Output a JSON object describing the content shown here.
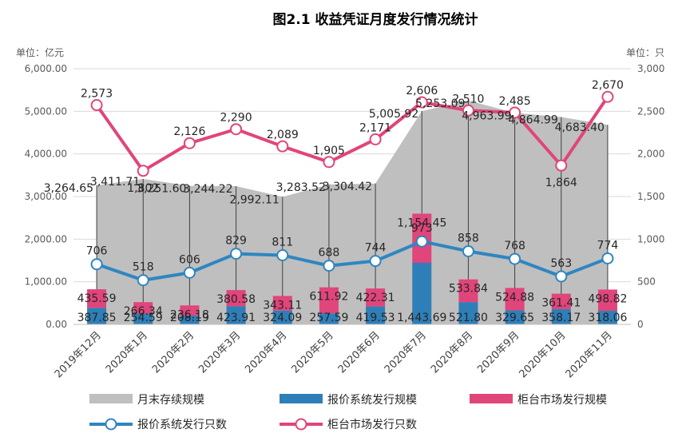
{
  "chart_data": {
    "type": "combo",
    "title": "图2.1 收益凭证月度发行情况统计",
    "left_unit": "单位：亿元",
    "right_unit": "单位：只",
    "left_ticks": [
      "0.00",
      "1,000.00",
      "2,000.00",
      "3,000.00",
      "4,000.00",
      "5,000.00",
      "6,000.00"
    ],
    "right_ticks": [
      "0",
      "500",
      "1,000",
      "1,500",
      "2,000",
      "2,500",
      "3,000"
    ],
    "left_ylim": [
      0,
      6000
    ],
    "right_ylim": [
      0,
      3000
    ],
    "categories": [
      "2019年12月",
      "2020年1月",
      "2020年2月",
      "2020年3月",
      "2020年4月",
      "2020年5月",
      "2020年6月",
      "2020年7月",
      "2020年8月",
      "2020年9月",
      "2020年10月",
      "2020年11月"
    ],
    "series": [
      {
        "name": "月末存续规模",
        "kind": "area",
        "axis": "left",
        "color": "#bfbfbf",
        "values": [
          3264.65,
          3411.71,
          3251.6,
          3244.22,
          2992.11,
          3283.52,
          3304.42,
          5005.92,
          5253.09,
          4963.99,
          4864.99,
          4683.4
        ],
        "labels": [
          "3,264.65",
          "3,411.71",
          "3,251.60",
          "3,244.22",
          "2,992.11",
          "3,283.52",
          "3,304.42",
          "5,005.92",
          "5,253.09",
          "4,963.99",
          "4,864.99",
          "4,683.40"
        ]
      },
      {
        "name": "报价系统发行规模",
        "kind": "bar",
        "axis": "left",
        "color": "#2e7fb8",
        "values": [
          387.85,
          254.59,
          208.19,
          423.91,
          324.09,
          257.59,
          419.53,
          1443.69,
          521.8,
          329.65,
          358.17,
          318.06
        ],
        "labels": [
          "387.85",
          "254.59",
          "208.19",
          "423.91",
          "324.09",
          "257.59",
          "419.53",
          "1,443.69",
          "521.80",
          "329.65",
          "358.17",
          "318.06"
        ]
      },
      {
        "name": "柜台市场发行规模",
        "kind": "bar",
        "axis": "left",
        "color": "#e0457b",
        "values": [
          435.59,
          266.34,
          236.18,
          380.58,
          343.11,
          611.92,
          422.31,
          1154.45,
          533.84,
          524.88,
          361.41,
          498.82
        ],
        "labels": [
          "435.59",
          "266.34",
          "236.18",
          "380.58",
          "343.11",
          "611.92",
          "422.31",
          "1,154.45",
          "533.84",
          "524.88",
          "361.41",
          "498.82"
        ]
      },
      {
        "name": "报价系统发行只数",
        "kind": "line",
        "axis": "right",
        "color": "#2e86c1",
        "values": [
          706,
          518,
          606,
          829,
          811,
          688,
          744,
          973,
          858,
          768,
          563,
          774
        ],
        "labels": [
          "706",
          "518",
          "606",
          "829",
          "811",
          "688",
          "744",
          "973",
          "858",
          "768",
          "563",
          "774"
        ]
      },
      {
        "name": "柜台市场发行只数",
        "kind": "line",
        "axis": "right",
        "color": "#e0457b",
        "values": [
          2573,
          1802,
          2126,
          2290,
          2089,
          1905,
          2171,
          2606,
          2510,
          2485,
          1864,
          2670
        ],
        "labels": [
          "2,573",
          "1,802",
          "2,126",
          "2,290",
          "2,089",
          "1,905",
          "2,171",
          "2,606",
          "2,510",
          "2,485",
          "1,864",
          "2,670"
        ]
      }
    ],
    "legend_position": "bottom"
  }
}
